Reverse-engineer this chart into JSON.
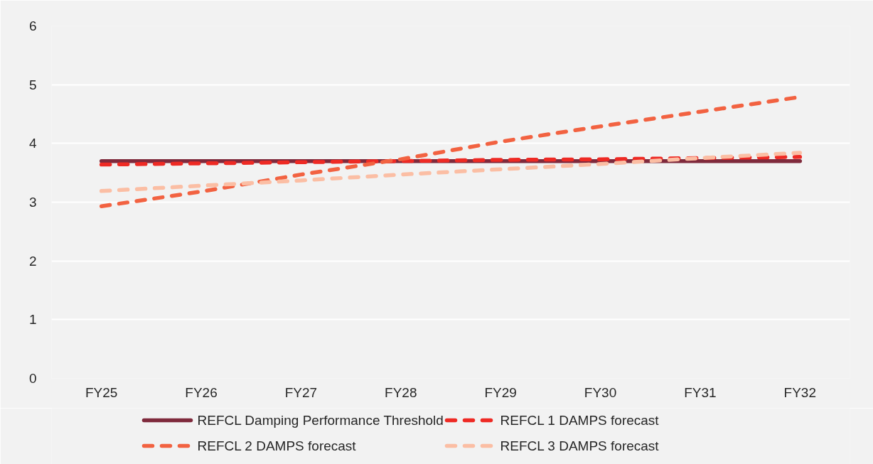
{
  "chart_data": {
    "type": "line",
    "categories": [
      "FY25",
      "FY26",
      "FY27",
      "FY28",
      "FY29",
      "FY30",
      "FY31",
      "FY32"
    ],
    "series": [
      {
        "name": "REFCL Damping Performance Threshold",
        "color": "#7f2a3c",
        "line_style": "solid",
        "values": [
          3.7,
          3.7,
          3.7,
          3.7,
          3.7,
          3.7,
          3.7,
          3.7
        ]
      },
      {
        "name": "REFCL 1 DAMPS forecast",
        "color": "#ee2a24",
        "line_style": "dashed",
        "values": [
          3.64,
          3.66,
          3.68,
          3.7,
          3.72,
          3.73,
          3.75,
          3.77
        ]
      },
      {
        "name": "REFCL 2 DAMPS forecast",
        "color": "#f26241",
        "line_style": "dashed",
        "values": [
          2.93,
          3.18,
          3.47,
          3.73,
          4.03,
          4.29,
          4.54,
          4.79
        ]
      },
      {
        "name": "REFCL 3 DAMPS forecast",
        "color": "#fbbea4",
        "line_style": "dashed",
        "values": [
          3.19,
          3.28,
          3.37,
          3.47,
          3.56,
          3.65,
          3.75,
          3.84
        ]
      }
    ],
    "ylim": [
      0,
      6
    ],
    "yticks": [
      0,
      1,
      2,
      3,
      4,
      5,
      6
    ],
    "grid": "y",
    "legend": "bottom"
  }
}
